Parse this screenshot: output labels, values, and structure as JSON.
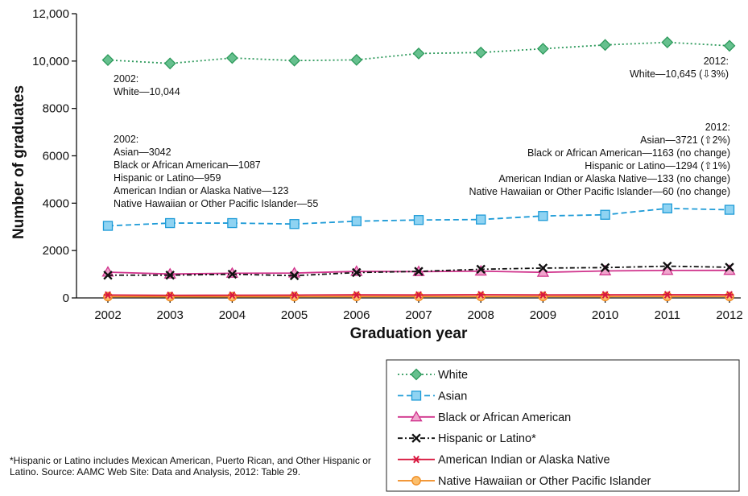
{
  "chart_data": {
    "type": "line",
    "xlabel": "Graduation year",
    "ylabel": "Number of graduates",
    "ylim": [
      0,
      12000
    ],
    "yticks": [
      0,
      2000,
      4000,
      6000,
      8000,
      10000,
      12000
    ],
    "ytick_labels": [
      "0",
      "2000",
      "4000",
      "6000",
      "8000",
      "10,000",
      "12,000"
    ],
    "x": [
      "2002",
      "2003",
      "2004",
      "2005",
      "2006",
      "2007",
      "2008",
      "2009",
      "2010",
      "2011",
      "2012"
    ],
    "grid": false,
    "legend_position": "bottom-right",
    "series": [
      {
        "name": "White",
        "color": "#2e9a5c",
        "fill": "#66c08e",
        "marker": "diamond",
        "dash": "2,3",
        "values": [
          10044,
          9900,
          10130,
          10020,
          10050,
          10320,
          10360,
          10520,
          10680,
          10790,
          10645
        ]
      },
      {
        "name": "Asian",
        "color": "#1e9bd7",
        "fill": "#8fd3f2",
        "marker": "square",
        "dash": "7,4",
        "values": [
          3042,
          3160,
          3160,
          3120,
          3240,
          3290,
          3310,
          3460,
          3510,
          3780,
          3721
        ]
      },
      {
        "name": "Black or African American",
        "color": "#d0338c",
        "fill": "#f0a5cd",
        "marker": "triangle",
        "dash": "",
        "values": [
          1087,
          1010,
          1040,
          1050,
          1120,
          1110,
          1130,
          1080,
          1140,
          1160,
          1163
        ]
      },
      {
        "name": "Hispanic or Latino*",
        "color": "#111111",
        "fill": "#111111",
        "marker": "x",
        "dash": "6,3,2,3",
        "values": [
          959,
          960,
          1000,
          940,
          1070,
          1120,
          1210,
          1260,
          1280,
          1340,
          1294
        ]
      },
      {
        "name": "American Indian or Alaska Native",
        "color": "#d8173e",
        "fill": "#d8173e",
        "marker": "asterisk",
        "dash": "",
        "values": [
          123,
          110,
          115,
          120,
          130,
          125,
          135,
          128,
          130,
          135,
          133
        ]
      },
      {
        "name": "Native Hawaiian or Other Pacific Islander",
        "color": "#f08a1e",
        "fill": "#fbbf6e",
        "marker": "circle",
        "dash": "",
        "values": [
          55,
          50,
          52,
          55,
          58,
          60,
          58,
          60,
          58,
          62,
          60
        ]
      }
    ],
    "annotations": [
      {
        "anchor": "start",
        "lines": [
          "2002:",
          "White—10,044"
        ]
      },
      {
        "anchor": "end",
        "lines": [
          "2012:",
          "White—10,645 (⇩3%)"
        ]
      },
      {
        "anchor": "start",
        "lines": [
          "2002:",
          "Asian—3042",
          "Black or African American—1087",
          "Hispanic or Latino—959",
          "American Indian or Alaska Native—123",
          "Native Hawaiian or Other Pacific Islander—55"
        ]
      },
      {
        "anchor": "end",
        "lines": [
          "2012:",
          "Asian—3721 (⇧2%)",
          "Black or African American—1163 (no change)",
          "Hispanic or Latino—1294 (⇧1%)",
          "American Indian or Alaska Native—133 (no change)",
          "Native Hawaiian or Other Pacific Islander—60 (no change)"
        ]
      }
    ]
  },
  "footnote": "*Hispanic or Latino includes Mexican American, Puerto Rican, and Other Hispanic or Latino. Source: AAMC Web Site: Data and Analysis, 2012: Table 29."
}
